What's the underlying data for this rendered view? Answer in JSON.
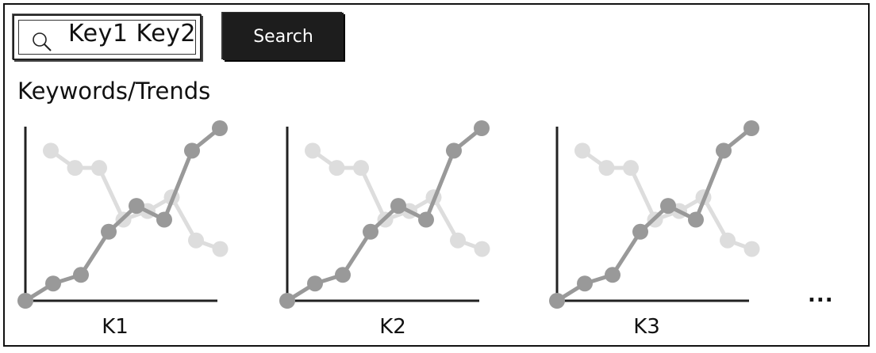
{
  "search": {
    "query": "Key1 Key2",
    "button_label": "Search"
  },
  "heading": "Keywords/Trends",
  "charts": [
    {
      "label": "K1"
    },
    {
      "label": "K2"
    },
    {
      "label": "K3"
    }
  ],
  "more_indicator": "...",
  "colors": {
    "dark_series": "#999999",
    "light_series": "#dddddd",
    "axis": "#222222",
    "button_bg": "#1d1d1d"
  },
  "chart_data": [
    {
      "type": "line",
      "series": [
        {
          "values": [
            0,
            1,
            1.5,
            4,
            5.5,
            4.7,
            8.7,
            10
          ]
        },
        {
          "values": [
            8.7,
            7.7,
            7.7,
            4.7,
            5.2,
            6,
            3.5,
            3
          ]
        }
      ],
      "xlabel": "K1"
    },
    {
      "type": "line",
      "series": [
        {
          "values": [
            0,
            1,
            1.5,
            4,
            5.5,
            4.7,
            8.7,
            10
          ]
        },
        {
          "values": [
            8.7,
            7.7,
            7.7,
            4.7,
            5.2,
            6,
            3.5,
            3
          ]
        }
      ],
      "xlabel": "K2"
    },
    {
      "type": "line",
      "series": [
        {
          "values": [
            0,
            1,
            1.5,
            4,
            5.5,
            4.7,
            8.7,
            10
          ]
        },
        {
          "values": [
            8.7,
            7.7,
            7.7,
            4.7,
            5.2,
            6,
            3.5,
            3
          ]
        }
      ],
      "xlabel": "K3"
    }
  ]
}
